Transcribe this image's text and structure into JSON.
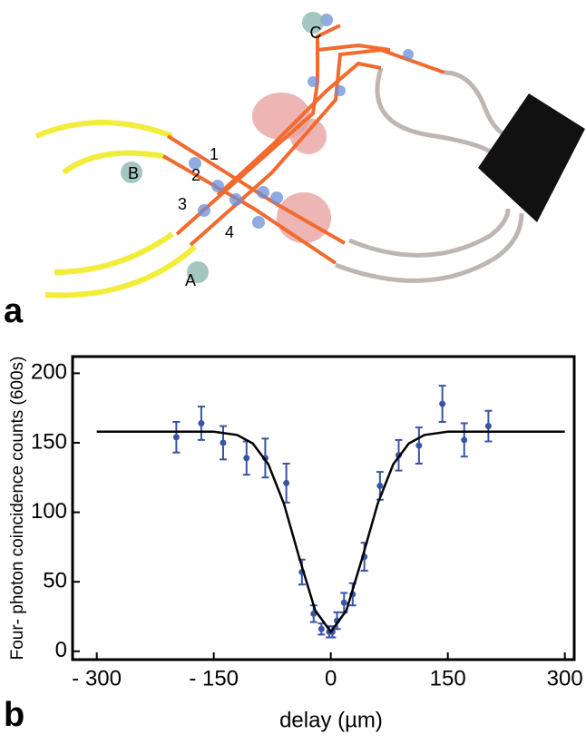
{
  "panel_a": {
    "label": "a",
    "markers": [
      "A",
      "B",
      "C",
      "1",
      "2",
      "3",
      "4"
    ]
  },
  "chart_data": {
    "type": "scatter",
    "panel_label": "b",
    "x_label": "delay (µm)",
    "y_label": "Four- photon coincidence counts (600s)",
    "xlim": [
      -331,
      312
    ],
    "ylim": [
      -6,
      212
    ],
    "xticks": [
      {
        "value": -300,
        "label": "- 300"
      },
      {
        "value": -150,
        "label": "- 150"
      },
      0,
      150,
      300
    ],
    "yticks": [
      0,
      50,
      100,
      150,
      200
    ],
    "series": [
      {
        "type": "scatter",
        "color": "#3a54a4",
        "x": [
          -198,
          -166,
          -138,
          -108,
          -84,
          -57,
          -37,
          -22,
          -12,
          -2,
          2,
          8,
          17,
          28,
          43,
          63,
          87,
          113,
          143,
          171,
          202
        ],
        "values": [
          154,
          164,
          150,
          139,
          139,
          121,
          57,
          27,
          16,
          14,
          14,
          22,
          35,
          41,
          68,
          119,
          141,
          148,
          178,
          152,
          162
        ],
        "errors": [
          11,
          12,
          12,
          12,
          14,
          14,
          9,
          6,
          4,
          4,
          4,
          6,
          7,
          8,
          10,
          10,
          11,
          13,
          13,
          12,
          11
        ]
      },
      {
        "type": "line",
        "color": "#000000",
        "x": [
          -300,
          -250,
          -200,
          -150,
          -120,
          -100,
          -80,
          -60,
          -40,
          -20,
          0,
          20,
          40,
          60,
          80,
          100,
          120,
          150,
          200,
          250,
          300
        ],
        "values": [
          158,
          158,
          158,
          158,
          155.6,
          149.5,
          134.5,
          106,
          66.5,
          29.4,
          14,
          29.4,
          66.5,
          106,
          134.5,
          149.5,
          155.6,
          158,
          158,
          158,
          158
        ]
      }
    ]
  }
}
